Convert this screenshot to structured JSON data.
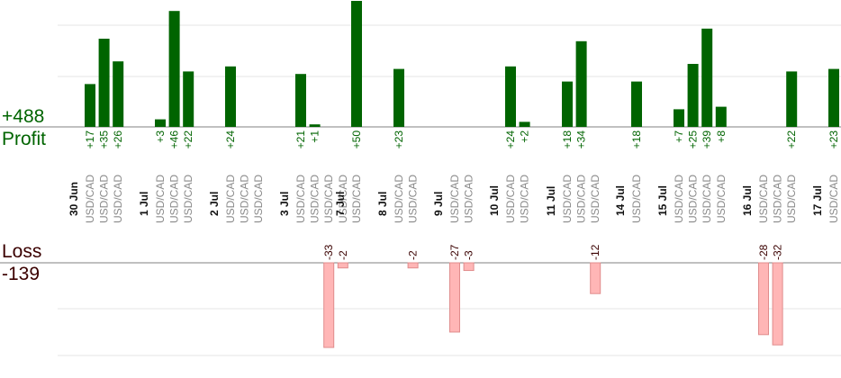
{
  "summary": {
    "profit_total": "+488",
    "profit_label": "Profit",
    "loss_label": "Loss",
    "loss_total": "-139"
  },
  "colors": {
    "profit_bar": "#006400",
    "loss_bar_fill": "#ffb6b6",
    "loss_bar_stroke": "#e08c8c",
    "profit_text": "#006400",
    "loss_text": "#3a0000",
    "date_text": "#111111",
    "pair_text": "#8a8a8a",
    "grid": "#e6e6e6",
    "axis": "#808080"
  },
  "chart_data": {
    "type": "bar",
    "pair": "USD/CAD",
    "profit_max_visible": 50,
    "loss_max_visible": 40,
    "groups": [
      {
        "date": "30 Jun",
        "trades": [
          17,
          35,
          26
        ]
      },
      {
        "date": "1 Jul",
        "trades": [
          3,
          46,
          22
        ]
      },
      {
        "date": "2 Jul",
        "trades": [
          24,
          null,
          null
        ]
      },
      {
        "date": "3 Jul",
        "trades": [
          21,
          1,
          -33,
          -2
        ]
      },
      {
        "date": "7 Jul",
        "trades": [
          50
        ]
      },
      {
        "date": "8 Jul",
        "trades": [
          23,
          -2
        ]
      },
      {
        "date": "9 Jul",
        "trades": [
          -27,
          -3
        ]
      },
      {
        "date": "10 Jul",
        "trades": [
          24,
          2
        ]
      },
      {
        "date": "11 Jul",
        "trades": [
          18,
          34,
          -12
        ]
      },
      {
        "date": "14 Jul",
        "trades": [
          18
        ]
      },
      {
        "date": "15 Jul",
        "trades": [
          7,
          25,
          39,
          8
        ]
      },
      {
        "date": "16 Jul",
        "trades": [
          -28,
          -32,
          22
        ]
      },
      {
        "date": "17 Jul",
        "trades": [
          23
        ]
      }
    ]
  }
}
